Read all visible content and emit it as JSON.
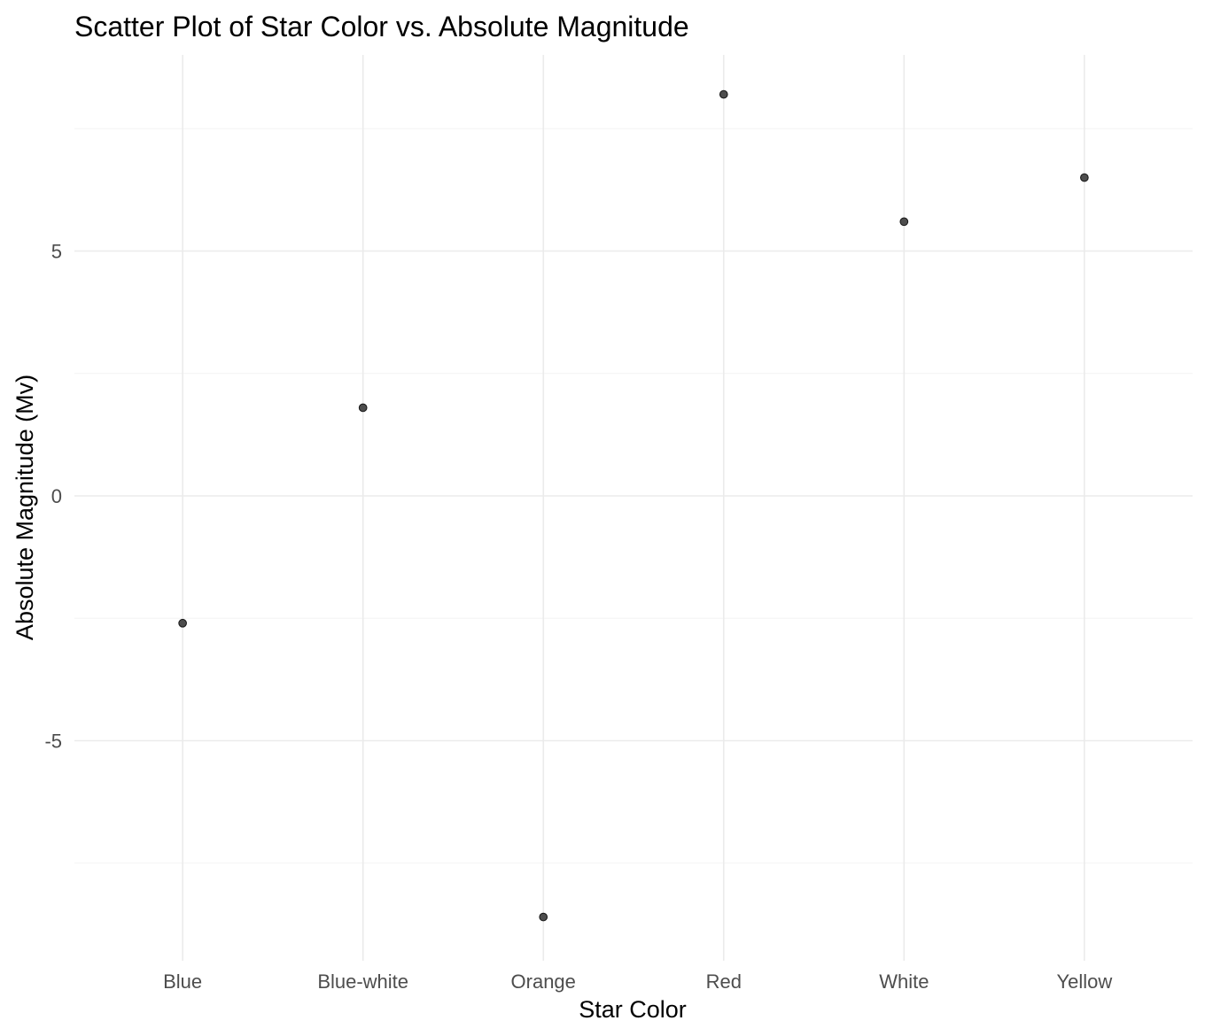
{
  "chart_data": {
    "type": "scatter",
    "title": "Scatter Plot of Star Color vs. Absolute Magnitude",
    "xlabel": "Star Color",
    "ylabel": "Absolute Magnitude (Mv)",
    "categories": [
      "Blue",
      "Blue-white",
      "Orange",
      "Red",
      "White",
      "Yellow"
    ],
    "values": [
      -2.6,
      1.8,
      -8.6,
      8.2,
      5.6,
      6.5
    ],
    "y_ticks": [
      -5,
      0,
      5
    ],
    "ylim": [
      -9.3,
      9.0
    ],
    "grid": true,
    "legend": "none",
    "point_color": "#4d4d4d"
  }
}
